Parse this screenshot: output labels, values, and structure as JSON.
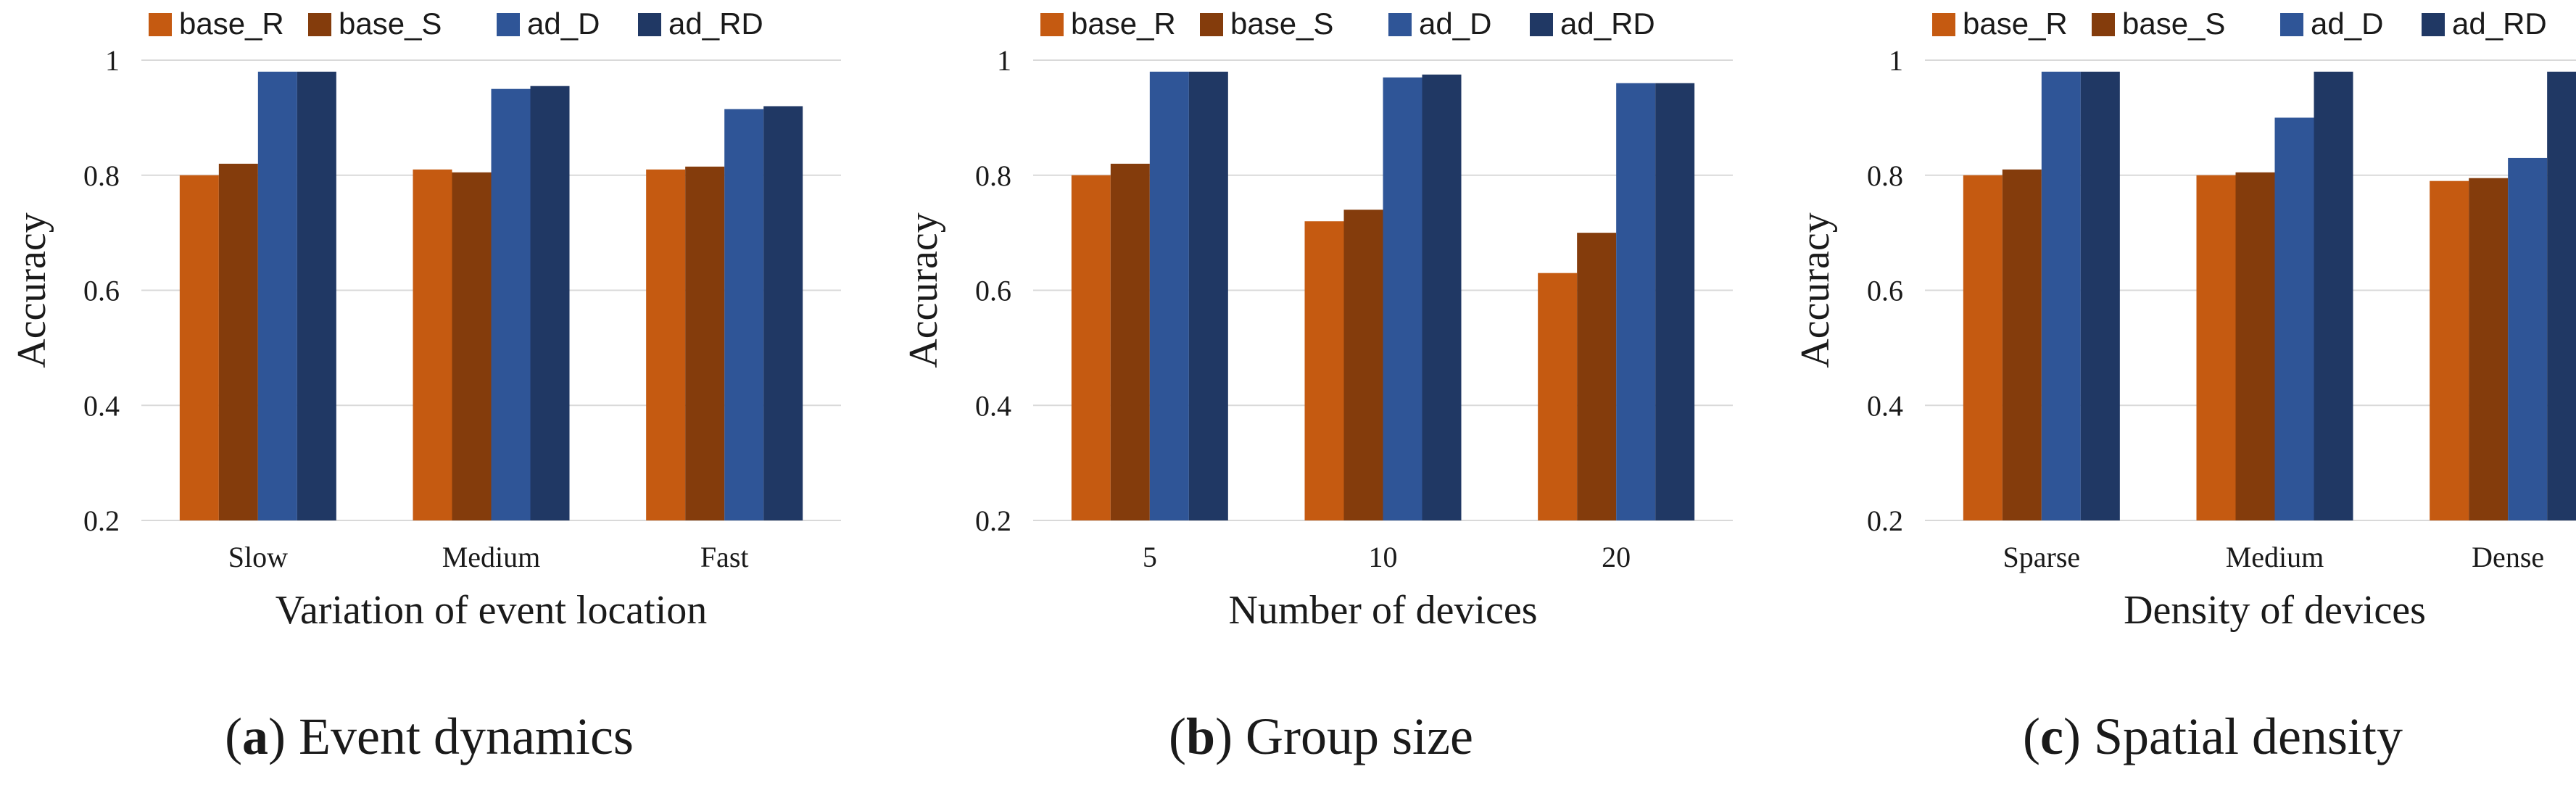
{
  "colors": {
    "base_R": "#c55a11",
    "base_S": "#843c0c",
    "ad_D": "#2f5597",
    "ad_RD": "#203864",
    "grid": "#d9d9d9",
    "text": "#1a1a1a"
  },
  "chart_data": [
    {
      "type": "bar",
      "panel_tag": "a",
      "caption": "Event dynamics",
      "xlabel": "Variation of event location",
      "ylabel": "Accuracy",
      "ylim": [
        0.2,
        1
      ],
      "yticks": [
        "0.2",
        "0.4",
        "0.6",
        "0.8",
        "1"
      ],
      "legend": [
        "base_R",
        "base_S",
        "ad_D",
        "ad_RD"
      ],
      "categories": [
        "Slow",
        "Medium",
        "Fast"
      ],
      "series": [
        {
          "name": "base_R",
          "values": [
            0.8,
            0.81,
            0.81
          ]
        },
        {
          "name": "base_S",
          "values": [
            0.82,
            0.805,
            0.815
          ]
        },
        {
          "name": "ad_D",
          "values": [
            0.98,
            0.95,
            0.915
          ]
        },
        {
          "name": "ad_RD",
          "values": [
            0.98,
            0.955,
            0.92
          ]
        }
      ]
    },
    {
      "type": "bar",
      "panel_tag": "b",
      "caption": "Group size",
      "xlabel": "Number of devices",
      "ylabel": "Accuracy",
      "ylim": [
        0.2,
        1
      ],
      "yticks": [
        "0.2",
        "0.4",
        "0.6",
        "0.8",
        "1"
      ],
      "legend": [
        "base_R",
        "base_S",
        "ad_D",
        "ad_RD"
      ],
      "categories": [
        "5",
        "10",
        "20"
      ],
      "series": [
        {
          "name": "base_R",
          "values": [
            0.8,
            0.72,
            0.63
          ]
        },
        {
          "name": "base_S",
          "values": [
            0.82,
            0.74,
            0.7
          ]
        },
        {
          "name": "ad_D",
          "values": [
            0.98,
            0.97,
            0.96
          ]
        },
        {
          "name": "ad_RD",
          "values": [
            0.98,
            0.975,
            0.96
          ]
        }
      ]
    },
    {
      "type": "bar",
      "panel_tag": "c",
      "caption": "Spatial density",
      "xlabel": "Density of devices",
      "ylabel": "Accuracy",
      "ylim": [
        0.2,
        1
      ],
      "yticks": [
        "0.2",
        "0.4",
        "0.6",
        "0.8",
        "1"
      ],
      "legend": [
        "base_R",
        "base_S",
        "ad_D",
        "ad_RD"
      ],
      "categories": [
        "Sparse",
        "Medium",
        "Dense"
      ],
      "series": [
        {
          "name": "base_R",
          "values": [
            0.8,
            0.8,
            0.79
          ]
        },
        {
          "name": "base_S",
          "values": [
            0.81,
            0.805,
            0.795
          ]
        },
        {
          "name": "ad_D",
          "values": [
            0.98,
            0.9,
            0.83
          ]
        },
        {
          "name": "ad_RD",
          "values": [
            0.98,
            0.98,
            0.98
          ]
        }
      ]
    }
  ]
}
